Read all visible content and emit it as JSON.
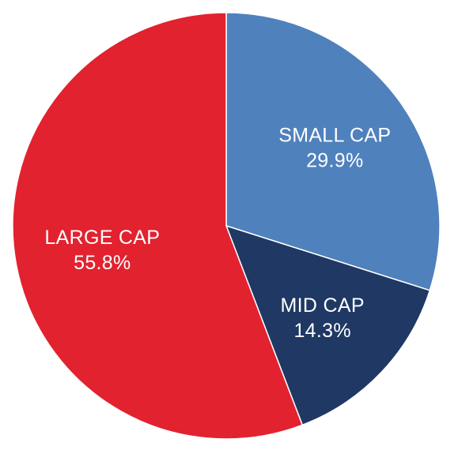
{
  "chart_data": {
    "type": "pie",
    "title": "",
    "start_angle_deg": 0,
    "direction": "clockwise",
    "slices": [
      {
        "label": "SMALL CAP",
        "value": 29.9,
        "display": "29.9%",
        "color": "#4f81bd"
      },
      {
        "label": "MID CAP",
        "value": 14.3,
        "display": "14.3%",
        "color": "#1f3864"
      },
      {
        "label": "LARGE CAP",
        "value": 55.8,
        "display": "55.8%",
        "color": "#e2222f"
      }
    ],
    "legend": "none",
    "label_placement": "inside"
  }
}
